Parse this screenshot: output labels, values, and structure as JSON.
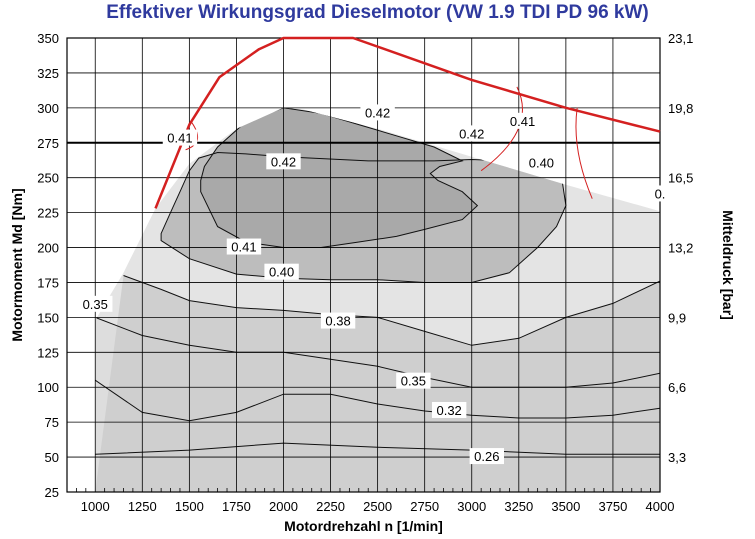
{
  "chart_data": {
    "type": "contour",
    "title": "Effektiver Wirkungsgrad Dieselmotor (VW 1.9 TDI PD 96 kW)",
    "xlabel": "Motordrehzahl n [1/min]",
    "ylabel": "Motormoment Md [Nm]",
    "y2label": "Mitteldruck [bar]",
    "xlim": [
      850,
      4000
    ],
    "ylim": [
      25,
      350
    ],
    "x_ticks": [
      1000,
      1250,
      1500,
      1750,
      2000,
      2250,
      2500,
      2750,
      3000,
      3250,
      3500,
      3750,
      4000
    ],
    "y_ticks": [
      25,
      50,
      75,
      100,
      125,
      150,
      175,
      200,
      225,
      250,
      275,
      300,
      325,
      350
    ],
    "y2_ticks": [
      {
        "value": 50,
        "label": "3,3"
      },
      {
        "value": 100,
        "label": "6,6"
      },
      {
        "value": 150,
        "label": "9,9"
      },
      {
        "value": 200,
        "label": "13,2"
      },
      {
        "value": 250,
        "label": "16,5"
      },
      {
        "value": 300,
        "label": "19,8"
      },
      {
        "value": 350,
        "label": "23,1"
      }
    ],
    "grid": true,
    "reference_line": {
      "y": 275,
      "color": "#000000"
    },
    "full_load_curve": {
      "color": "#d42020",
      "points": [
        [
          1320,
          228
        ],
        [
          1500,
          288
        ],
        [
          1660,
          322
        ],
        [
          1870,
          342
        ],
        [
          2000,
          350
        ],
        [
          2370,
          350
        ],
        [
          3000,
          320
        ],
        [
          3500,
          300
        ],
        [
          4000,
          283
        ]
      ]
    },
    "regions": [
      {
        "level": 0.26,
        "color": "#f7f7f7",
        "upper": [
          [
            1000,
            52
          ],
          [
            1500,
            55
          ],
          [
            2000,
            60
          ],
          [
            2500,
            57
          ],
          [
            3000,
            55
          ],
          [
            3500,
            52
          ],
          [
            4000,
            52
          ]
        ]
      },
      {
        "level": 0.32,
        "color": "#ebebeb",
        "upper": [
          [
            1000,
            105
          ],
          [
            1250,
            82
          ],
          [
            1500,
            76
          ],
          [
            1750,
            82
          ],
          [
            2000,
            95
          ],
          [
            2250,
            95
          ],
          [
            2500,
            88
          ],
          [
            2750,
            83
          ],
          [
            3000,
            80
          ],
          [
            3250,
            78
          ],
          [
            3500,
            78
          ],
          [
            3750,
            80
          ],
          [
            4000,
            85
          ]
        ]
      },
      {
        "level": 0.35,
        "color": "#dddddd",
        "upper": [
          [
            1000,
            150
          ],
          [
            1250,
            137
          ],
          [
            1500,
            130
          ],
          [
            1750,
            125
          ],
          [
            2000,
            125
          ],
          [
            2500,
            115
          ],
          [
            2750,
            107
          ],
          [
            3000,
            100
          ],
          [
            3500,
            100
          ],
          [
            3750,
            103
          ],
          [
            4000,
            110
          ]
        ]
      },
      {
        "level": 0.38,
        "color": "#cfcfcf",
        "upper": [
          [
            1150,
            180
          ],
          [
            1350,
            170
          ],
          [
            1500,
            162
          ],
          [
            1750,
            157
          ],
          [
            2000,
            155
          ],
          [
            2250,
            152
          ],
          [
            2500,
            150
          ],
          [
            2750,
            140
          ],
          [
            3000,
            130
          ],
          [
            3250,
            135
          ],
          [
            3500,
            150
          ],
          [
            3750,
            160
          ],
          [
            4000,
            176
          ]
        ]
      },
      {
        "level": 0.4,
        "color": "#bdbdbd",
        "upper": [
          [
            1350,
            205
          ],
          [
            1500,
            192
          ],
          [
            1750,
            181
          ],
          [
            2000,
            178
          ],
          [
            2250,
            177
          ],
          [
            2500,
            177
          ],
          [
            2750,
            175
          ],
          [
            3000,
            175
          ],
          [
            3200,
            182
          ],
          [
            3350,
            200
          ],
          [
            3450,
            215
          ],
          [
            3500,
            230
          ],
          [
            3480,
            248
          ],
          [
            3380,
            258
          ],
          [
            3200,
            262
          ],
          [
            3000,
            263
          ],
          [
            2800,
            262
          ],
          [
            2600,
            262
          ],
          [
            2450,
            262
          ],
          [
            2300,
            263
          ],
          [
            2150,
            264
          ],
          [
            2000,
            265
          ],
          [
            1800,
            267
          ],
          [
            1650,
            268
          ],
          [
            1550,
            264
          ],
          [
            1500,
            255
          ],
          [
            1450,
            240
          ],
          [
            1400,
            225
          ],
          [
            1350,
            210
          ]
        ]
      },
      {
        "level": 0.41,
        "color": "#a9a9a9",
        "upper": [
          [
            1560,
            240
          ],
          [
            1650,
            215
          ],
          [
            1800,
            204
          ],
          [
            2000,
            200
          ],
          [
            2200,
            200
          ],
          [
            2400,
            204
          ],
          [
            2600,
            208
          ],
          [
            2750,
            213
          ],
          [
            2950,
            220
          ],
          [
            3030,
            230
          ],
          [
            2950,
            240
          ],
          [
            2820,
            248
          ],
          [
            2780,
            253
          ],
          [
            2830,
            258
          ],
          [
            2950,
            262
          ],
          [
            2800,
            272
          ],
          [
            2600,
            280
          ],
          [
            2400,
            288
          ],
          [
            2200,
            296
          ],
          [
            2000,
            300
          ],
          [
            1800,
            290
          ],
          [
            1650,
            272
          ],
          [
            1580,
            258
          ],
          [
            1560,
            248
          ]
        ]
      }
    ],
    "fill_boundary": [
      [
        1000,
        25
      ],
      [
        1000,
        148
      ],
      [
        1150,
        182
      ],
      [
        1320,
        228
      ],
      [
        1500,
        260
      ],
      [
        1750,
        285
      ],
      [
        2000,
        300
      ],
      [
        2100,
        299
      ],
      [
        2500,
        285
      ],
      [
        3000,
        265
      ],
      [
        3500,
        245
      ],
      [
        4000,
        226
      ],
      [
        4000,
        25
      ]
    ],
    "contour_labels": [
      {
        "x": 2000,
        "y": 261,
        "text": "0.42"
      },
      {
        "x": 2500,
        "y": 296,
        "text": "0.42"
      },
      {
        "x": 3000,
        "y": 281,
        "text": "0.42"
      },
      {
        "x": 1450,
        "y": 278,
        "text": "0.41"
      },
      {
        "x": 3270,
        "y": 290,
        "text": "0.41"
      },
      {
        "x": 3370,
        "y": 260,
        "text": "0.40"
      },
      {
        "x": 4000,
        "y": 238,
        "text": "0."
      },
      {
        "x": 1790,
        "y": 200,
        "text": "0.41"
      },
      {
        "x": 1990,
        "y": 182,
        "text": "0.40"
      },
      {
        "x": 2290,
        "y": 147,
        "text": "0.38"
      },
      {
        "x": 2690,
        "y": 104,
        "text": "0.35"
      },
      {
        "x": 2880,
        "y": 83,
        "text": "0.32"
      },
      {
        "x": 3080,
        "y": 50,
        "text": "0.26"
      },
      {
        "x": 1000,
        "y": 159,
        "text": "0.35"
      }
    ]
  }
}
